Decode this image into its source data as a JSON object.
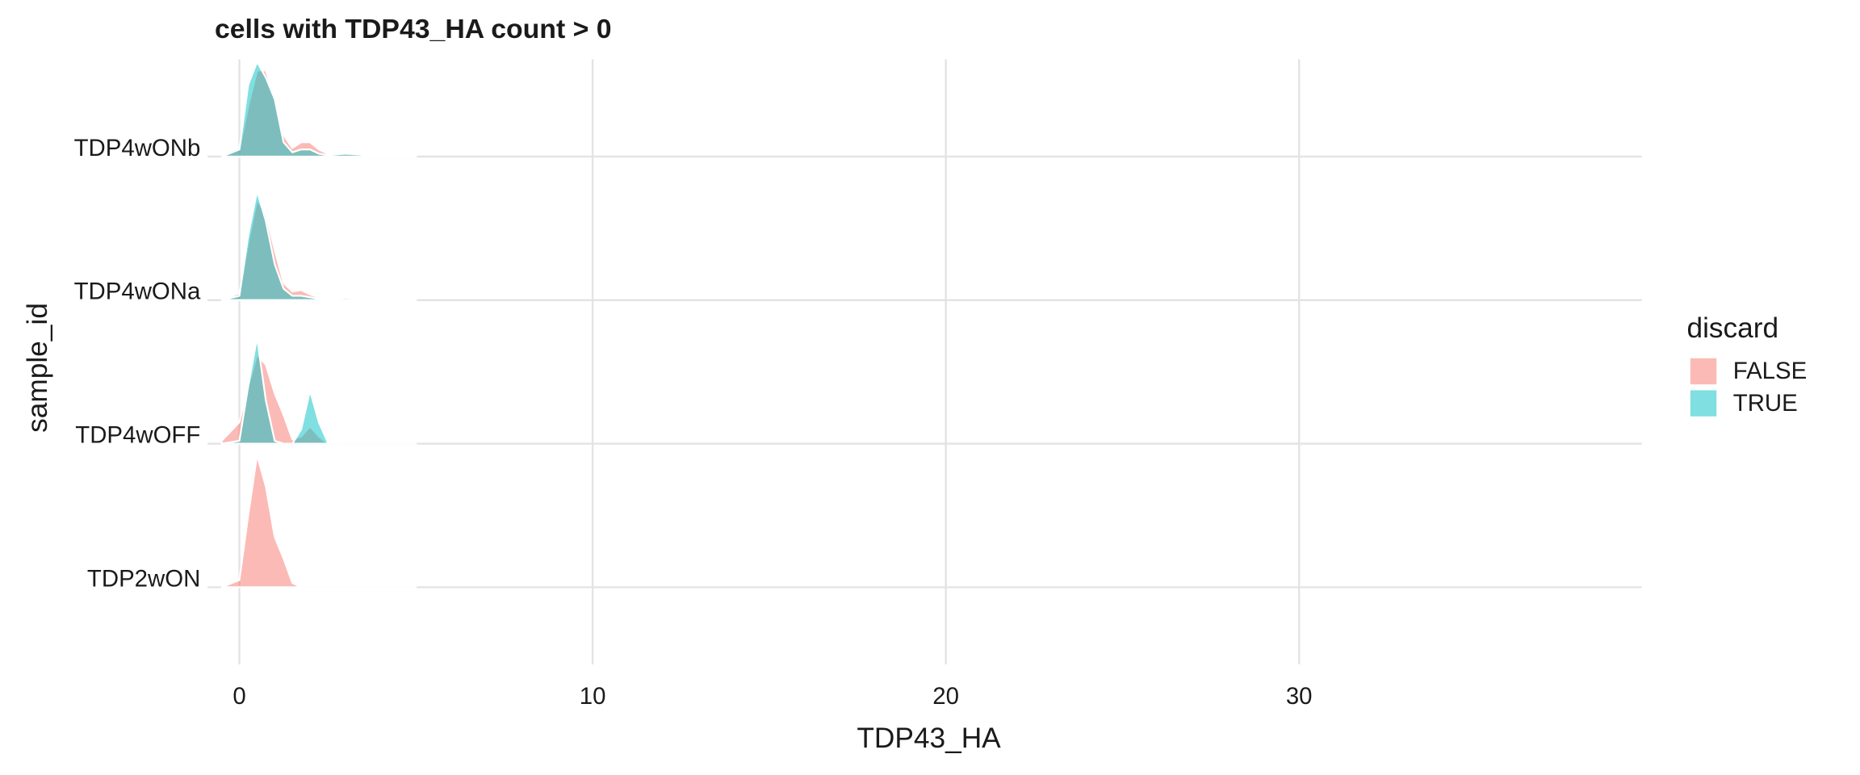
{
  "chart_data": {
    "type": "ridgeline",
    "title": "cells with TDP43_HA count > 0",
    "xlabel": "TDP43_HA",
    "ylabel": "sample_id",
    "legend_title": "discard",
    "legend_position": "right",
    "grid": true,
    "opacity": 0.5,
    "categories": [
      "TDP2wON",
      "TDP4wOFF",
      "TDP4wONa",
      "TDP4wONb"
    ],
    "x": [
      -0.5,
      0,
      0.25,
      0.5,
      0.75,
      1,
      1.25,
      1.5,
      1.75,
      2,
      2.25,
      2.5,
      3,
      4,
      5
    ],
    "xlim": [
      -0.9,
      39.7
    ],
    "xticks": [
      0,
      10,
      20,
      30
    ],
    "series": [
      {
        "name": "FALSE",
        "color": "#F8766D",
        "values": [
          [
            0,
            0.05,
            0.5,
            0.92,
            0.7,
            0.35,
            0.2,
            0.03,
            0,
            0,
            0,
            0,
            0,
            0,
            0
          ],
          [
            0.02,
            0.15,
            0.4,
            0.62,
            0.55,
            0.35,
            0.2,
            0.03,
            0.05,
            0.12,
            0.05,
            0,
            0,
            0,
            0
          ],
          [
            0,
            0.05,
            0.4,
            0.7,
            0.6,
            0.35,
            0.12,
            0.06,
            0.07,
            0.04,
            0.02,
            0.01,
            0.015,
            0.003,
            0
          ],
          [
            0,
            0.05,
            0.35,
            0.6,
            0.6,
            0.4,
            0.15,
            0.06,
            0.1,
            0.1,
            0.05,
            0.02,
            0.02,
            0.01,
            0.005
          ]
        ]
      },
      {
        "name": "TRUE",
        "color": "#00BFC4",
        "values": [
          null,
          [
            0,
            0.02,
            0.4,
            0.74,
            0.3,
            0.02,
            0,
            0,
            0.1,
            0.37,
            0.15,
            0.01,
            0,
            0,
            0
          ],
          [
            0,
            0.03,
            0.45,
            0.76,
            0.55,
            0.25,
            0.08,
            0.03,
            0.03,
            0.02,
            0.01,
            0.005,
            0.015,
            0,
            0
          ],
          [
            0,
            0.05,
            0.5,
            0.66,
            0.55,
            0.4,
            0.1,
            0.03,
            0.05,
            0.05,
            0.02,
            0.01,
            0.02,
            0.005,
            0
          ]
        ]
      }
    ]
  }
}
